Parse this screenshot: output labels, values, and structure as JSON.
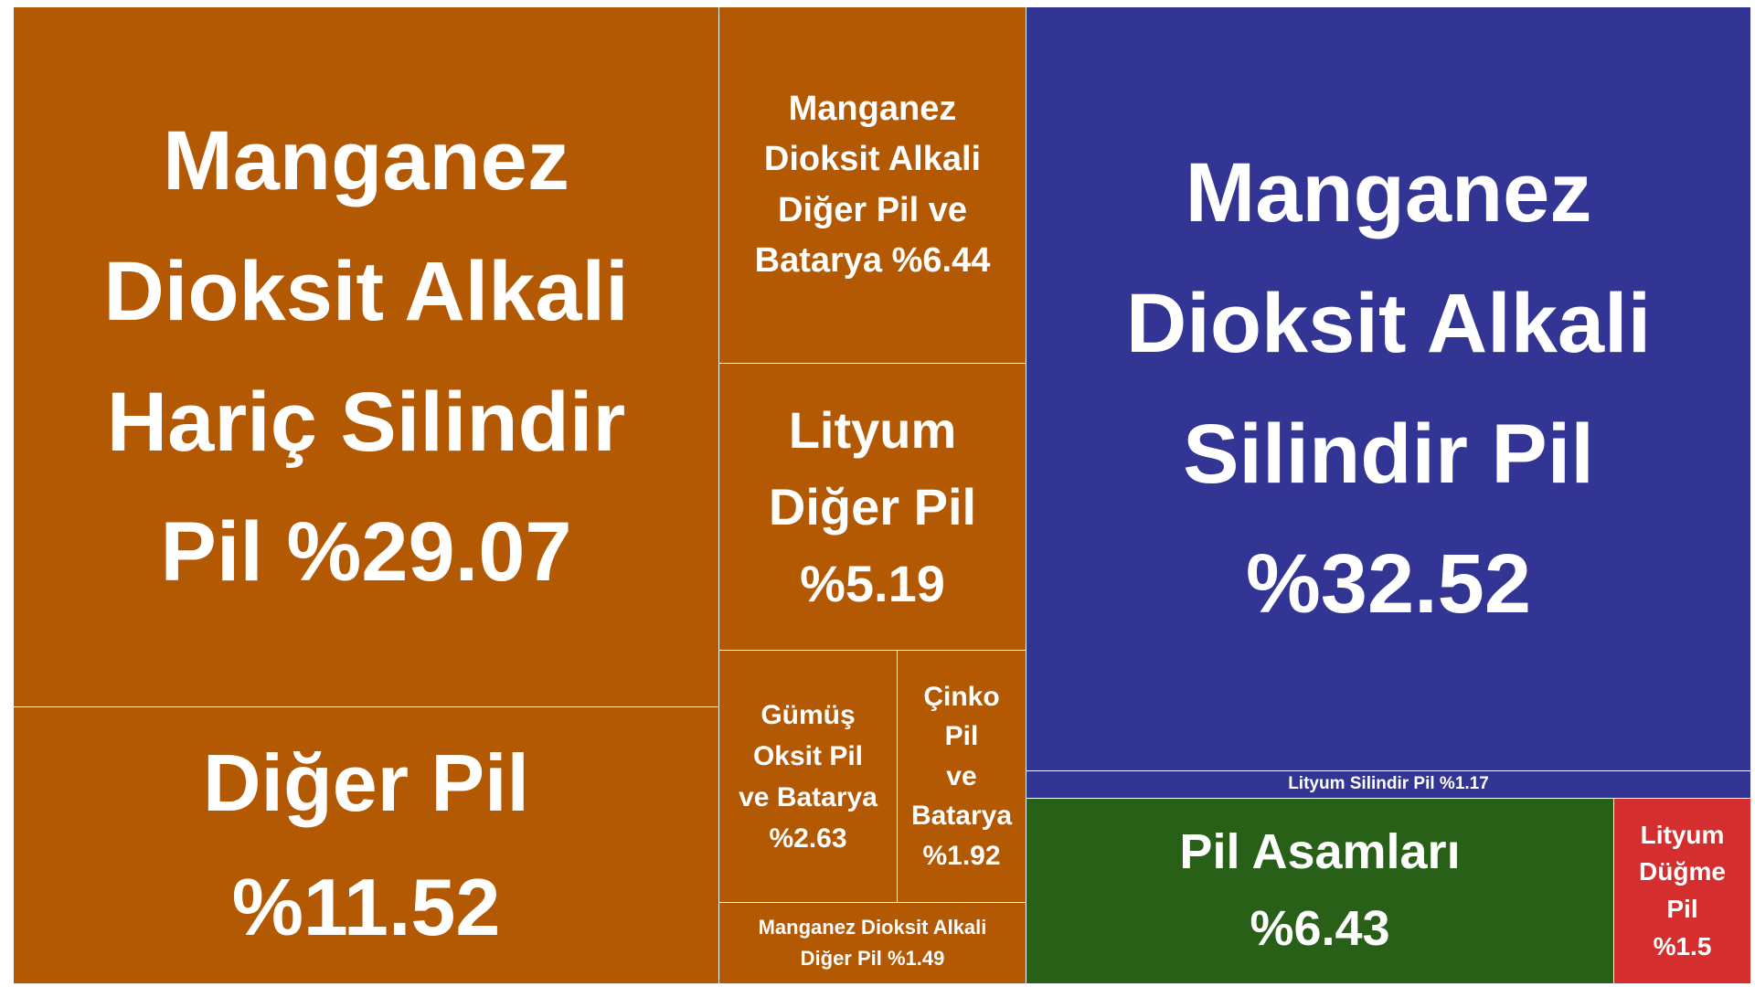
{
  "chart_data": {
    "type": "treemap",
    "colors": {
      "orange": "#b35904",
      "blue": "#333594",
      "green": "#286018",
      "red": "#d42e2e"
    },
    "tiles": [
      {
        "id": "mda-haric-silindir",
        "label": "Manganez\nDioksit Alkali\nHariç Silindir\nPil %29.07",
        "value": 29.07,
        "color": "orange"
      },
      {
        "id": "diger-pil",
        "label": "Diğer Pil\n%11.52",
        "value": 11.52,
        "color": "orange"
      },
      {
        "id": "mda-diger-pil-batarya",
        "label": "Manganez\nDioksit Alkali\nDiğer Pil ve\nBatarya %6.44",
        "value": 6.44,
        "color": "orange"
      },
      {
        "id": "lityum-diger-pil",
        "label": "Lityum\nDiğer Pil\n%5.19",
        "value": 5.19,
        "color": "orange"
      },
      {
        "id": "gumus-oksit",
        "label": "Gümüş\nOksit Pil\nve Batarya\n%2.63",
        "value": 2.63,
        "color": "orange"
      },
      {
        "id": "cinko-pil",
        "label": "Çinko\nPil\nve\nBatarya\n%1.92",
        "value": 1.92,
        "color": "orange"
      },
      {
        "id": "mda-diger-pil",
        "label": "Manganez Dioksit Alkali\nDiğer Pil %1.49",
        "value": 1.49,
        "color": "orange"
      },
      {
        "id": "mda-silindir-pil",
        "label": "Manganez\nDioksit Alkali\nSilindir Pil\n%32.52",
        "value": 32.52,
        "color": "blue"
      },
      {
        "id": "lityum-silindir-pil",
        "label": "Lityum Silindir Pil    %1.17",
        "value": 1.17,
        "color": "blue"
      },
      {
        "id": "pil-asamlari",
        "label": "Pil Asamları\n%6.43",
        "value": 6.43,
        "color": "green"
      },
      {
        "id": "lityum-dugme-pil",
        "label": "Lityum\nDüğme\nPil\n%1.5",
        "value": 1.5,
        "color": "red"
      }
    ]
  }
}
